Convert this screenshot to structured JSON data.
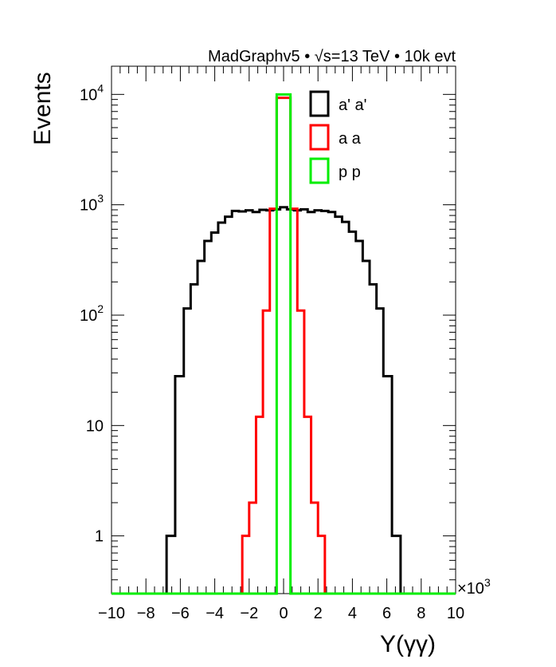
{
  "chart_data": {
    "type": "histogram",
    "title": "MadGraphv5 • √s=13 TeV • 10k evt",
    "title_parts": {
      "generator": "MadGraphv5",
      "sqrt": "√",
      "energy": "s=13 TeV",
      "events": "10k evt",
      "bullet": "•"
    },
    "xlabel": "Y(γγ)",
    "ylabel": "Events",
    "x_multiplier": "×10",
    "x_multiplier_exp": "3",
    "xlim": [
      -10,
      10
    ],
    "ylim": [
      0.3,
      18000
    ],
    "yscale": "log",
    "bin_width": 0.5,
    "x_tick_labels": [
      "−10",
      "−8",
      "−6",
      "−4",
      "−2",
      "0",
      "2",
      "4",
      "6",
      "8",
      "10"
    ],
    "x_tick_values": [
      -10,
      -8,
      -6,
      -4,
      -2,
      0,
      2,
      4,
      6,
      8,
      10
    ],
    "y_ticks": [
      {
        "value": 1,
        "base": "1",
        "exp": ""
      },
      {
        "value": 10,
        "base": "10",
        "exp": ""
      },
      {
        "value": 100,
        "base": "10",
        "exp": "2"
      },
      {
        "value": 1000,
        "base": "10",
        "exp": "3"
      },
      {
        "value": 10000,
        "base": "10",
        "exp": "4"
      }
    ],
    "series": [
      {
        "name": "a' a'",
        "color": "#000000",
        "bin_edges": [
          -6.8,
          -6.3,
          -5.8,
          -5.4,
          -5.0,
          -4.6,
          -4.2,
          -3.8,
          -3.4,
          -3.0,
          -2.6,
          -2.2,
          -1.8,
          -1.4,
          -1.0,
          -0.6,
          -0.2,
          0.2,
          0.6,
          1.0,
          1.4,
          1.8,
          2.2,
          2.6,
          3.0,
          3.4,
          3.8,
          4.2,
          4.6,
          5.0,
          5.4,
          5.8,
          6.3,
          6.8
        ],
        "values": [
          1,
          28,
          115,
          190,
          310,
          470,
          560,
          690,
          780,
          880,
          870,
          890,
          860,
          900,
          890,
          910,
          950,
          910,
          890,
          910,
          860,
          890,
          880,
          860,
          780,
          700,
          570,
          470,
          310,
          190,
          115,
          28,
          1
        ]
      },
      {
        "name": "a a",
        "color": "#ff0000",
        "bin_edges": [
          -2.4,
          -2.0,
          -1.6,
          -1.2,
          -0.8,
          -0.4,
          0.4,
          0.8,
          1.2,
          1.6,
          2.0,
          2.4
        ],
        "values": [
          1,
          2,
          12,
          110,
          920,
          9300,
          920,
          110,
          12,
          2,
          1
        ]
      },
      {
        "name": "p p",
        "color": "#00ee00",
        "bin_edges": [
          -0.4,
          0.4
        ],
        "values": [
          10000
        ]
      }
    ],
    "legend": {
      "placement": "top-center",
      "entries": [
        "a' a'",
        "a a",
        "p p"
      ]
    }
  }
}
